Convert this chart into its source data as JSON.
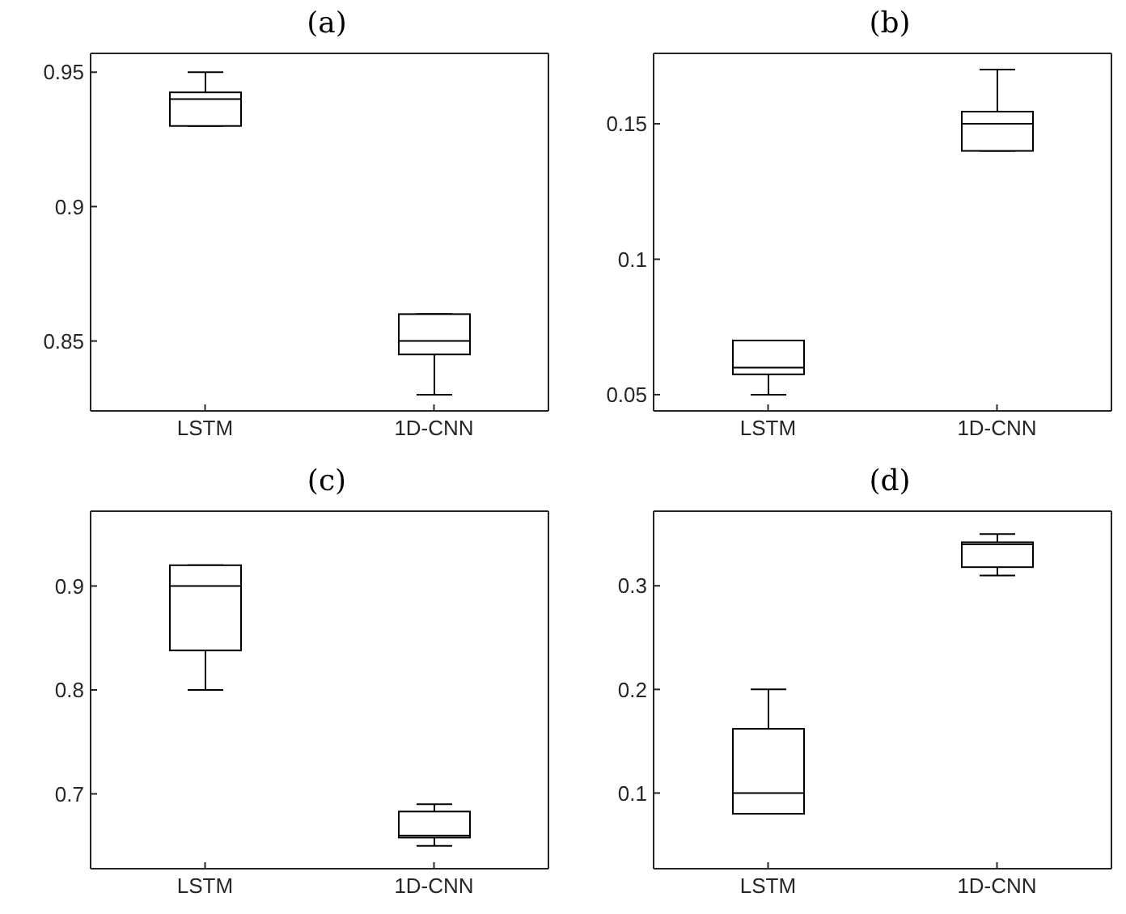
{
  "chart_data": [
    {
      "type": "box",
      "title": "(a)",
      "categories": [
        "LSTM",
        "1D-CNN"
      ],
      "color": "#000000",
      "boxes": [
        {
          "low": 0.93,
          "q1": 0.93,
          "median": 0.94,
          "q3": 0.9425,
          "high": 0.95
        },
        {
          "low": 0.83,
          "q1": 0.845,
          "median": 0.85,
          "q3": 0.86,
          "high": 0.86
        }
      ],
      "ylim": [
        0.824,
        0.957
      ],
      "yticks": [
        0.85,
        0.9,
        0.95
      ],
      "grid": false
    },
    {
      "type": "box",
      "title": "(b)",
      "categories": [
        "LSTM",
        "1D-CNN"
      ],
      "color": "#000000",
      "boxes": [
        {
          "low": 0.05,
          "q1": 0.0575,
          "median": 0.06,
          "q3": 0.07,
          "high": 0.07
        },
        {
          "low": 0.14,
          "q1": 0.14,
          "median": 0.15,
          "q3": 0.1545,
          "high": 0.17
        }
      ],
      "ylim": [
        0.044,
        0.176
      ],
      "yticks": [
        0.05,
        0.1,
        0.15
      ],
      "grid": false
    },
    {
      "type": "box",
      "title": "(c)",
      "categories": [
        "LSTM",
        "1D-CNN"
      ],
      "color": "#000000",
      "boxes": [
        {
          "low": 0.8,
          "q1": 0.838,
          "median": 0.9,
          "q3": 0.92,
          "high": 0.92
        },
        {
          "low": 0.65,
          "q1": 0.658,
          "median": 0.66,
          "q3": 0.683,
          "high": 0.69
        }
      ],
      "ylim": [
        0.628,
        0.972
      ],
      "yticks": [
        0.7,
        0.8,
        0.9
      ],
      "grid": false
    },
    {
      "type": "box",
      "title": "(d)",
      "categories": [
        "LSTM",
        "1D-CNN"
      ],
      "color": "#000000",
      "boxes": [
        {
          "low": 0.08,
          "q1": 0.08,
          "median": 0.1,
          "q3": 0.162,
          "high": 0.2
        },
        {
          "low": 0.31,
          "q1": 0.318,
          "median": 0.34,
          "q3": 0.342,
          "high": 0.35
        }
      ],
      "ylim": [
        0.027,
        0.372
      ],
      "yticks": [
        0.1,
        0.2,
        0.3
      ],
      "grid": false
    }
  ]
}
